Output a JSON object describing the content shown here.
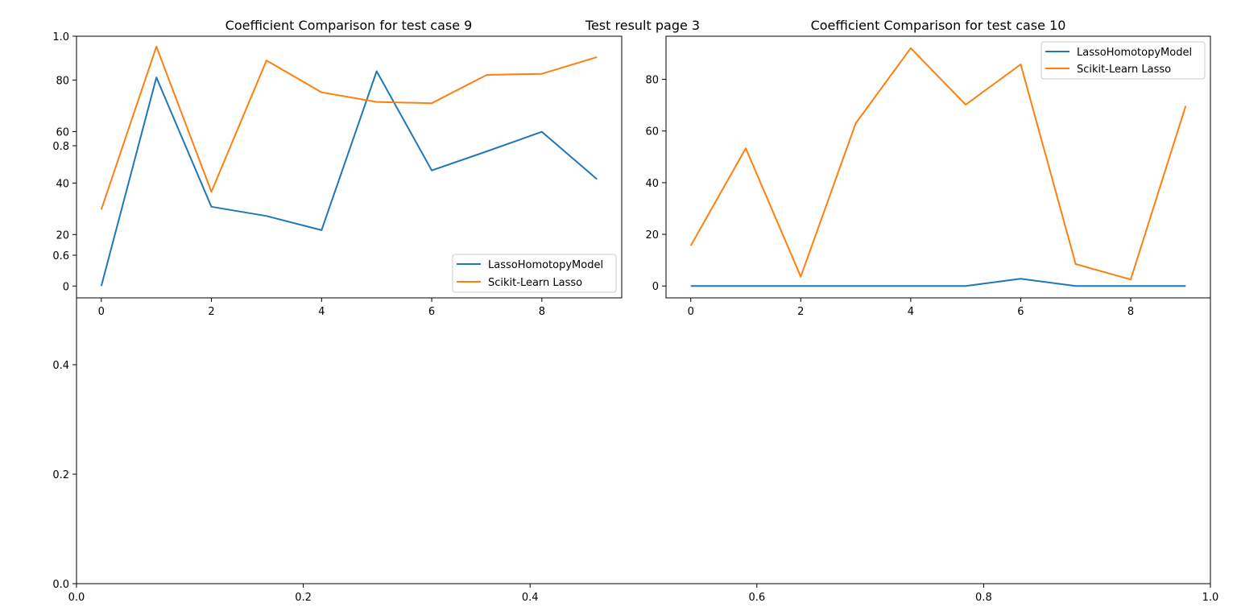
{
  "suptitle": "Test result page 3",
  "colors": {
    "lasso_homotopy": "#1f77b4",
    "sklearn_lasso": "#ff7f0e",
    "axis": "#000000"
  },
  "chart_data": [
    {
      "type": "line",
      "title": "",
      "xlabel": "",
      "ylabel": "",
      "xlim": [
        0,
        1
      ],
      "ylim": [
        0,
        1
      ],
      "x_ticks": [
        "0.0",
        "0.2",
        "0.4",
        "0.6",
        "0.8",
        "1.0"
      ],
      "y_ticks": [
        "0.0",
        "0.2",
        "0.4",
        "0.6",
        "0.8",
        "1.0"
      ],
      "series": [],
      "note_role": "background full-figure axes"
    },
    {
      "type": "line",
      "title": "Coefficient Comparison for test case 9",
      "xlabel": "",
      "ylabel": "",
      "x": [
        0,
        1,
        2,
        3,
        4,
        5,
        6,
        7,
        8,
        9
      ],
      "xlim": [
        -0.45,
        9.45
      ],
      "ylim": [
        -4.6,
        97.0
      ],
      "x_ticks": [
        "0",
        "2",
        "4",
        "6",
        "8"
      ],
      "y_ticks": [
        "0",
        "20",
        "40",
        "60",
        "80"
      ],
      "grid": false,
      "legend": "lower-right",
      "series": [
        {
          "name": "LassoHomotopyModel",
          "values": [
            0,
            81.0,
            30.8,
            27.2,
            21.7,
            83.4,
            44.9,
            52.3,
            59.9,
            41.5
          ]
        },
        {
          "name": "Scikit-Learn Lasso",
          "values": [
            29.7,
            93.0,
            36.6,
            87.6,
            75.2,
            71.5,
            71.0,
            82.0,
            82.4,
            88.9
          ]
        }
      ]
    },
    {
      "type": "line",
      "title": "Coefficient Comparison for test case 10",
      "xlabel": "",
      "ylabel": "",
      "x": [
        0,
        1,
        2,
        3,
        4,
        5,
        6,
        7,
        8,
        9
      ],
      "xlim": [
        -0.45,
        9.45
      ],
      "ylim": [
        -4.6,
        96.7
      ],
      "x_ticks": [
        "0",
        "2",
        "4",
        "6",
        "8"
      ],
      "y_ticks": [
        "0",
        "20",
        "40",
        "60",
        "80"
      ],
      "grid": false,
      "legend": "upper-right",
      "series": [
        {
          "name": "LassoHomotopyModel",
          "values": [
            0,
            0,
            0,
            0,
            0,
            0,
            2.8,
            0,
            0,
            0
          ]
        },
        {
          "name": "Scikit-Learn Lasso",
          "values": [
            15.6,
            53.3,
            3.6,
            63.0,
            92.1,
            70.2,
            85.8,
            8.5,
            2.5,
            69.7
          ]
        }
      ]
    }
  ]
}
